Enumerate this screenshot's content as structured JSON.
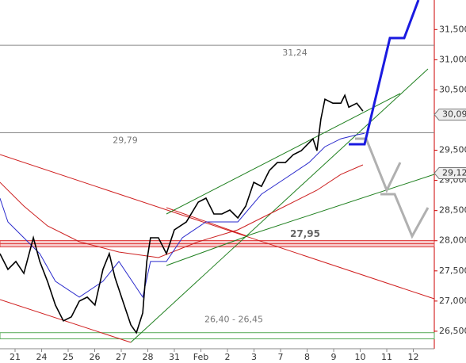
{
  "chart_data": {
    "type": "line",
    "x": {
      "price": [
        -0.57,
        -0.27,
        0.03,
        0.33,
        0.69,
        0.93,
        1.22,
        1.52,
        1.82,
        2.12,
        2.42,
        2.72,
        3.01,
        3.31,
        3.55,
        3.76,
        4.06,
        4.36,
        4.57,
        4.81,
        4.96,
        5.1,
        5.4,
        5.7,
        6.0,
        6.45,
        6.9,
        7.19,
        7.49,
        7.79,
        8.09,
        8.39,
        8.69,
        8.99,
        9.28,
        9.58,
        9.88,
        10.18,
        10.48,
        10.78,
        11.22,
        11.37,
        11.52,
        11.67,
        11.97,
        12.27,
        12.42,
        12.57,
        12.87,
        13.1
      ],
      "ma_fast": [
        -0.57,
        -0.27,
        0.33,
        0.93,
        1.52,
        2.42,
        3.31,
        3.91,
        4.51,
        4.81,
        5.1,
        5.7,
        6.3,
        7.19,
        8.39,
        9.28,
        10.18,
        11.07,
        11.67,
        12.27,
        12.87,
        13.16
      ],
      "ma_slow": [
        -0.57,
        0.33,
        1.22,
        2.42,
        3.91,
        5.4,
        6.9,
        8.39,
        9.88,
        11.37,
        12.27,
        13.1
      ]
    },
    "series": [
      {
        "color": "#000000",
        "values": [
          27787,
          27525,
          27656,
          27459,
          28049,
          27656,
          27328,
          26934,
          26672,
          26738,
          26999,
          27065,
          26934,
          27525,
          27787,
          27393,
          26999,
          26606,
          26475,
          26803,
          27656,
          28049,
          28049,
          27787,
          28181,
          28312,
          28640,
          28706,
          28443,
          28443,
          28509,
          28378,
          28574,
          28968,
          28902,
          29165,
          29296,
          29296,
          29427,
          29493,
          29690,
          29493,
          30017,
          30345,
          30280,
          30280,
          30411,
          30214,
          30280,
          30149
        ]
      },
      {
        "color": "#2a2acc",
        "values": [
          28706,
          28312,
          28049,
          27787,
          27328,
          27065,
          27328,
          27656,
          27262,
          27065,
          27656,
          27656,
          28049,
          28312,
          28312,
          28771,
          29034,
          29296,
          29558,
          29690,
          29755,
          29781
        ]
      },
      {
        "color": "#cc2020",
        "values": [
          28968,
          28574,
          28246,
          27984,
          27813,
          27721,
          27984,
          28181,
          28509,
          28837,
          29099,
          29257
        ]
      }
    ],
    "xlim": [
      -0.567,
      15.79
    ],
    "xticks": [
      {
        "value": 0,
        "label": "21"
      },
      {
        "value": 1,
        "label": "24"
      },
      {
        "value": 2,
        "label": "25"
      },
      {
        "value": 3,
        "label": "26"
      },
      {
        "value": 4,
        "label": "27"
      },
      {
        "value": 5,
        "label": "28"
      },
      {
        "value": 6,
        "label": "31"
      },
      {
        "value": 7,
        "label": "Feb"
      },
      {
        "value": 8,
        "label": "2"
      },
      {
        "value": 9,
        "label": "3"
      },
      {
        "value": 10,
        "label": "7"
      },
      {
        "value": 11,
        "label": "8"
      },
      {
        "value": 12,
        "label": "9"
      },
      {
        "value": 13,
        "label": "10"
      },
      {
        "value": 14,
        "label": "11"
      },
      {
        "value": 15,
        "label": "12"
      }
    ],
    "ylim": [
      26210,
      31990
    ],
    "yticks": [
      {
        "value": 26500,
        "label": "26,500"
      },
      {
        "value": 27000,
        "label": "27,000"
      },
      {
        "value": 27500,
        "label": "27,500"
      },
      {
        "value": 28000,
        "label": "28,000"
      },
      {
        "value": 28500,
        "label": "28,500"
      },
      {
        "value": 29000,
        "label": "29,000"
      },
      {
        "value": 29500,
        "label": "29,500"
      },
      {
        "value": 30500,
        "label": "30,500"
      },
      {
        "value": 31000,
        "label": "31,000"
      },
      {
        "value": 31500,
        "label": "31,500"
      }
    ],
    "levels": [
      {
        "value": 31240,
        "label": "31,24",
        "color": "#888888"
      },
      {
        "value": 29790,
        "label": "29,79",
        "color": "#888888"
      },
      {
        "value": 27950,
        "label": "27,95",
        "color": "#e04040"
      }
    ],
    "band": {
      "values": [
        26400,
        26450
      ],
      "label": "26,40 - 26,45",
      "color": "#55aa55"
    },
    "price_tags": [
      {
        "value": 30090,
        "label": "30,09"
      },
      {
        "value": 29120,
        "label": "29,12"
      }
    ]
  }
}
